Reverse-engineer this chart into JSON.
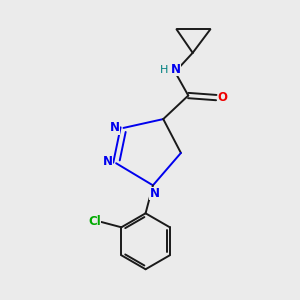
{
  "background_color": "#ebebeb",
  "bond_color": "#1a1a1a",
  "N_color": "#0000ee",
  "O_color": "#ee0000",
  "Cl_color": "#00aa00",
  "NH_color": "#008080",
  "figsize": [
    3.0,
    3.0
  ],
  "dpi": 100,
  "xlim": [
    0,
    10
  ],
  "ylim": [
    0,
    10
  ]
}
